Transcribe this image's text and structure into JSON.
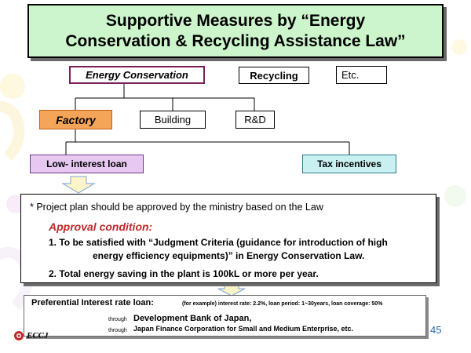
{
  "title": {
    "line1": "Supportive Measures by “Energy",
    "line2": "Conservation & Recycling Assistance Law”"
  },
  "categories": {
    "energy_conservation": "Energy Conservation",
    "recycling": "Recycling",
    "etc": "Etc."
  },
  "sectors": {
    "factory": "Factory",
    "building": "Building",
    "rd": "R&D"
  },
  "measures": {
    "low_interest_loan": "Low- interest loan",
    "tax_incentives": "Tax incentives"
  },
  "conditions": {
    "note": "*  Project plan should be approved by the ministry based on the Law",
    "approval_heading": "Approval condition:",
    "item1_line1": "1. To be satisfied with “Judgment Criteria (guidance for introduction of high",
    "item1_line2": "energy efficiency equipments)” in Energy Conservation Law.",
    "item2": "2. Total energy saving in the plant is 100kL or more per year."
  },
  "preferential": {
    "heading": "Preferential Interest rate loan:",
    "example": "(for example)   interest rate: 2.2%,   loan period: 1~30years,   loan coverage: 50%",
    "through1": "through",
    "bank1": "Development Bank of Japan,",
    "through2": "through",
    "bank2": "Japan Finance Corporation for Small and  Medium Enterprise, etc."
  },
  "footer": {
    "logo_text": "ECCJ",
    "page_number": "45"
  },
  "colors": {
    "title_bg": "#ccf5cc",
    "factory_bg": "#f5a55a",
    "loan_bg": "#e6c8f0",
    "tax_bg": "#c8f0f0",
    "approval_text": "#c0282a"
  }
}
